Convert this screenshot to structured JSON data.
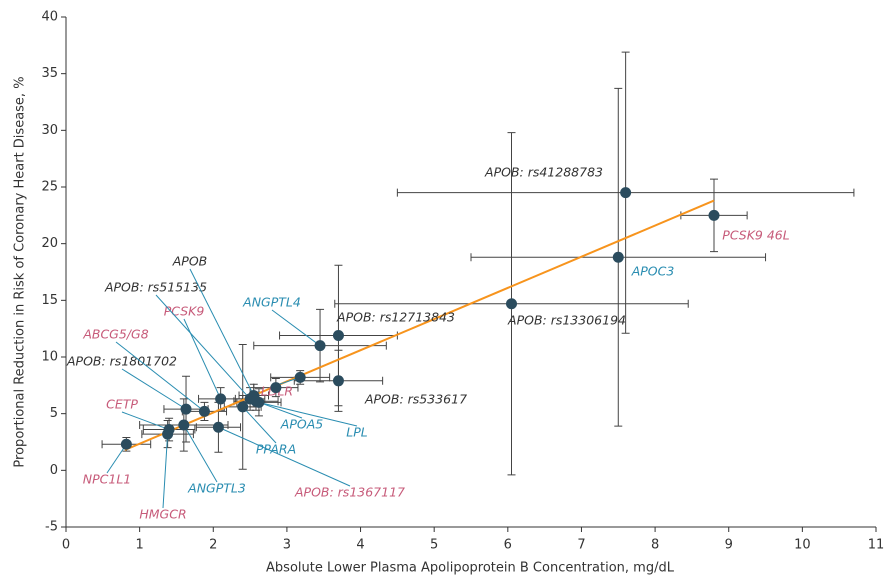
{
  "chart_data": {
    "type": "scatter",
    "x_label": "Absolute Lower Plasma Apolipoprotein B Concentration, mg/dL",
    "y_label": "Proportional Reduction in Risk of Coronary Heart Disease, %",
    "xlim": [
      0,
      11
    ],
    "xticks": [
      0,
      1,
      2,
      3,
      4,
      5,
      6,
      7,
      8,
      9,
      10,
      11
    ],
    "ylim": [
      -5,
      40
    ],
    "yticks": [
      -5,
      0,
      5,
      10,
      15,
      20,
      25,
      30,
      35,
      40
    ],
    "marker_color": "#2b4c5e",
    "fit_line": {
      "x": [
        0.8,
        8.8
      ],
      "y": [
        1.8,
        23.8
      ],
      "color": "#f7941d"
    },
    "points": [
      {
        "label": "NPC1L1",
        "x": 0.82,
        "y": 2.3,
        "x_err": 0.33,
        "y_err": 0.6,
        "label_color": "#c75b7a"
      },
      {
        "label": "HMGCR",
        "x": 1.38,
        "y": 3.2,
        "x_err": 0.35,
        "y_err": 1.2,
        "label_color": "#c75b7a"
      },
      {
        "label": "CETP",
        "x": 1.4,
        "y": 3.6,
        "x_err": 0.35,
        "y_err": 1.0,
        "label_color": "#c75b7a"
      },
      {
        "label": "ANGPTL3",
        "x": 1.6,
        "y": 4.0,
        "x_err": 0.6,
        "y_err": 2.3,
        "label_color": "#2a8db1"
      },
      {
        "label": "APOB: rs1801702",
        "x": 1.63,
        "y": 5.4,
        "x_err": 0.3,
        "y_err": 2.9,
        "label_color": "#333333"
      },
      {
        "label": "ABCG5/G8",
        "x": 1.88,
        "y": 5.2,
        "x_err": 0.3,
        "y_err": 0.8,
        "label_color": "#c75b7a"
      },
      {
        "label": "PCSK9",
        "x": 2.1,
        "y": 6.3,
        "x_err": 0.3,
        "y_err": 1.0,
        "label_color": "#c75b7a"
      },
      {
        "label": "APOB: rs1367117",
        "x": 2.07,
        "y": 3.8,
        "x_err": 0.3,
        "y_err": 2.2,
        "label_color": "#c75b7a"
      },
      {
        "label": "PPARA",
        "x": 2.4,
        "y": 5.6,
        "x_err": 0.25,
        "y_err": 5.5,
        "label_color": "#2a8db1"
      },
      {
        "label": "APOB: rs515135",
        "x": 2.5,
        "y": 6.3,
        "x_err": 0.2,
        "y_err": 1.0,
        "label_color": "#333333"
      },
      {
        "label": "APOB",
        "x": 2.55,
        "y": 6.6,
        "x_err": 0.2,
        "y_err": 1.0,
        "label_color": "#333333"
      },
      {
        "label": "APOA5",
        "x": 2.58,
        "y": 6.1,
        "x_err": 0.3,
        "y_err": 0.8,
        "label_color": "#2a8db1"
      },
      {
        "label": "LPL",
        "x": 2.62,
        "y": 6.0,
        "x_err": 0.3,
        "y_err": 1.2,
        "label_color": "#2a8db1"
      },
      {
        "label": null,
        "x": 2.85,
        "y": 7.3,
        "x_err": 0.3,
        "y_err": 0.8,
        "label_color": "#333333"
      },
      {
        "label": "LDLR",
        "x": 3.18,
        "y": 8.2,
        "x_err": 0.4,
        "y_err": 0.6,
        "label_color": "#c75b7a"
      },
      {
        "label": "ANGPTL4",
        "x": 3.45,
        "y": 11.0,
        "x_err": 0.9,
        "y_err": 3.2,
        "label_color": "#2a8db1"
      },
      {
        "label": "APOB: rs12713843",
        "x": 3.7,
        "y": 11.9,
        "x_err": 0.8,
        "y_err": 6.2,
        "label_color": "#333333"
      },
      {
        "label": "APOB: rs533617",
        "x": 3.7,
        "y": 7.9,
        "x_err": 0.6,
        "y_err": 2.7,
        "label_color": "#333333"
      },
      {
        "label": "APOB: rs13306194",
        "x": 6.05,
        "y": 14.7,
        "x_err": 2.4,
        "y_err": 15.1,
        "label_color": "#333333"
      },
      {
        "label": "APOC3",
        "x": 7.5,
        "y": 18.8,
        "x_err": 2.0,
        "y_err": 14.9,
        "label_color": "#2a8db1"
      },
      {
        "label": "APOB: rs41288783",
        "x": 7.6,
        "y": 24.5,
        "x_err": 3.1,
        "y_err": 12.4,
        "label_color": "#333333"
      },
      {
        "label": "PCSK9 46L",
        "x": 8.8,
        "y": 22.5,
        "x_err": 0.45,
        "y_err": 3.2,
        "label_color": "#c75b7a"
      }
    ]
  }
}
